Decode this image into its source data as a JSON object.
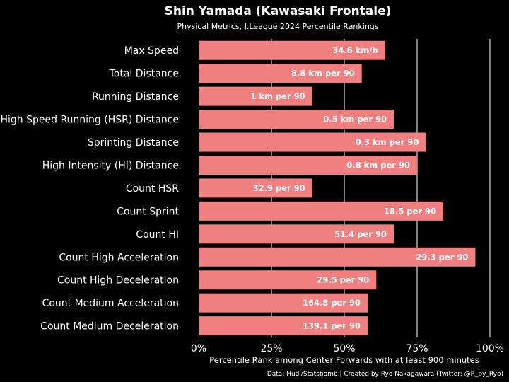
{
  "chart_data": {
    "type": "bar",
    "orientation": "horizontal",
    "title": "Shin Yamada (Kawasaki Frontale)",
    "subtitle": "Physical Metrics, J.League 2024 Percentile Rankings",
    "xlabel": "Percentile Rank among Center Forwards with at least 900 minutes",
    "caption": "Data: Hudl/Statsbomb | Created by Ryo Nakagawara (Twitter: @R_by_Ryo)",
    "xlim": [
      0,
      100
    ],
    "xticks": [
      0,
      25,
      50,
      75,
      100
    ],
    "xtick_labels": [
      "0%",
      "25%",
      "50%",
      "75%",
      "100%"
    ],
    "grid": "vertical major gridlines",
    "bar_color": "#f08080",
    "background": "#000000",
    "categories": [
      "Max Speed",
      "Total Distance",
      "Running Distance",
      "High Speed Running (HSR) Distance",
      "Sprinting Distance",
      "High Intensity (HI) Distance",
      "Count HSR",
      "Count Sprint",
      "Count HI",
      "Count High Acceleration",
      "Count High Deceleration",
      "Count Medium Acceleration",
      "Count Medium Deceleration"
    ],
    "values": [
      64,
      56,
      39,
      67,
      78,
      75,
      39,
      84,
      67,
      95,
      61,
      58,
      58
    ],
    "bar_labels": [
      "34.6 km/h",
      "8.8 km per 90",
      "1 km per 90",
      "0.5 km per 90",
      "0.3 km per 90",
      "0.8 km per 90",
      "32.9 per 90",
      "18.5 per 90",
      "51.4 per 90",
      "29.3 per 90",
      "29.5 per 90",
      "164.8 per 90",
      "139.1 per 90"
    ]
  }
}
